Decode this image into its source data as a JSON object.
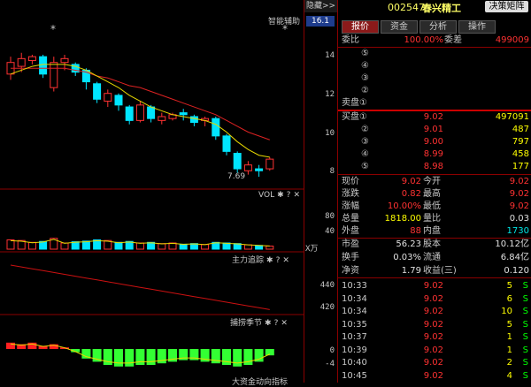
{
  "header": {
    "hide_label": "隐藏>>",
    "price_tag": "16.1",
    "stock_code": "002547",
    "stock_name": "春兴精工",
    "decision_button": "决策矩阵"
  },
  "tabs": [
    {
      "label": "报价",
      "active": true
    },
    {
      "label": "资金",
      "active": false
    },
    {
      "label": "分析",
      "active": false
    },
    {
      "label": "操作",
      "active": false
    }
  ],
  "chart_panels": {
    "main_title": "智能辅助",
    "star": "*",
    "low_marker": "7.69",
    "vol_title": "VOL",
    "vol_unit": "X万",
    "main_force_title": "主力追踪",
    "season_title": "捕捞季节",
    "bottom_cut": "大资金动向指标",
    "ctl_gear": "✱",
    "ctl_help": "?",
    "ctl_close": "✕"
  },
  "axis": {
    "price_ticks": [
      "14",
      "12",
      "10",
      "8"
    ],
    "vol_ticks": [
      "80",
      "40"
    ],
    "force_ticks": [
      "440",
      "420"
    ],
    "season_ticks": [
      "0",
      "-4"
    ]
  },
  "chart_data": {
    "type": "candlestick",
    "title": "智能辅助",
    "ylim": [
      7,
      16.1
    ],
    "candles": [
      {
        "o": 13.0,
        "c": 13.6,
        "h": 13.9,
        "l": 12.7
      },
      {
        "o": 13.4,
        "c": 13.8,
        "h": 14.1,
        "l": 13.1
      },
      {
        "o": 13.7,
        "c": 13.9,
        "h": 14.0,
        "l": 13.5
      },
      {
        "o": 13.9,
        "c": 13.0,
        "h": 14.0,
        "l": 12.8
      },
      {
        "o": 12.3,
        "c": 13.6,
        "h": 13.9,
        "l": 12.1
      },
      {
        "o": 13.6,
        "c": 13.8,
        "h": 14.0,
        "l": 13.2
      },
      {
        "o": 13.5,
        "c": 13.1,
        "h": 13.6,
        "l": 12.9
      },
      {
        "o": 13.2,
        "c": 12.6,
        "h": 13.3,
        "l": 12.2
      },
      {
        "o": 12.5,
        "c": 11.7,
        "h": 12.6,
        "l": 11.5
      },
      {
        "o": 11.6,
        "c": 12.0,
        "h": 12.2,
        "l": 11.3
      },
      {
        "o": 11.9,
        "c": 11.4,
        "h": 12.0,
        "l": 11.1
      },
      {
        "o": 11.3,
        "c": 10.6,
        "h": 11.4,
        "l": 10.4
      },
      {
        "o": 10.6,
        "c": 11.4,
        "h": 11.6,
        "l": 10.5
      },
      {
        "o": 11.3,
        "c": 10.7,
        "h": 11.4,
        "l": 10.5
      },
      {
        "o": 10.6,
        "c": 10.8,
        "h": 11.0,
        "l": 10.4
      },
      {
        "o": 10.7,
        "c": 10.9,
        "h": 11.0,
        "l": 10.6
      },
      {
        "o": 11.0,
        "c": 10.9,
        "h": 11.2,
        "l": 10.6
      },
      {
        "o": 10.8,
        "c": 10.5,
        "h": 10.9,
        "l": 10.3
      },
      {
        "o": 10.6,
        "c": 10.7,
        "h": 10.8,
        "l": 10.3
      },
      {
        "o": 10.7,
        "c": 9.8,
        "h": 10.8,
        "l": 9.6
      },
      {
        "o": 9.8,
        "c": 9.0,
        "h": 9.9,
        "l": 8.8
      },
      {
        "o": 8.9,
        "c": 8.1,
        "h": 9.0,
        "l": 7.9
      },
      {
        "o": 8.0,
        "c": 8.3,
        "h": 8.5,
        "l": 7.8
      },
      {
        "o": 8.1,
        "c": 8.0,
        "h": 8.3,
        "l": 7.69
      },
      {
        "o": 8.1,
        "c": 8.6,
        "h": 8.7,
        "l": 8.0
      }
    ],
    "ma_red": [
      13.3,
      13.3,
      13.3,
      13.3,
      13.3,
      13.3,
      13.2,
      13.1,
      12.9,
      12.8,
      12.6,
      12.4,
      12.3,
      12.1,
      11.9,
      11.7,
      11.5,
      11.3,
      11.1,
      10.9,
      10.6,
      10.3,
      10.0,
      9.8,
      9.6
    ],
    "ma_yellow": [
      13.0,
      13.2,
      13.4,
      13.5,
      13.5,
      13.5,
      13.4,
      13.2,
      12.9,
      12.6,
      12.3,
      11.9,
      11.6,
      11.3,
      11.1,
      10.9,
      10.8,
      10.7,
      10.6,
      10.4,
      10.0,
      9.5,
      9.1,
      8.8,
      8.7
    ],
    "volume": [
      30,
      28,
      22,
      25,
      35,
      20,
      24,
      26,
      30,
      28,
      22,
      25,
      20,
      22,
      18,
      20,
      16,
      18,
      15,
      22,
      20,
      18,
      14,
      12,
      10
    ],
    "season": [
      2,
      1.5,
      2,
      1,
      1.5,
      0.5,
      -1,
      -3,
      -4,
      -5,
      -5.5,
      -5.5,
      -5,
      -5,
      -4.5,
      -4,
      -3.5,
      -3.5,
      -4,
      -4.5,
      -5,
      -5.5,
      -5,
      -4,
      -2
    ]
  },
  "quote": {
    "wei_bi_label": "委比",
    "wei_bi_value": "100.00%",
    "wei_cha_label": "委差",
    "wei_cha_value": "499009",
    "sell_levels": [
      {
        "num": "⑤",
        "price": "",
        "vol": ""
      },
      {
        "num": "④",
        "price": "",
        "vol": ""
      },
      {
        "num": "③",
        "price": "",
        "vol": ""
      },
      {
        "num": "②",
        "price": "",
        "vol": ""
      },
      {
        "num": "卖盘①",
        "price": "",
        "vol": ""
      }
    ],
    "buy_levels": [
      {
        "num": "买盘①",
        "price": "9.02",
        "vol": "497091"
      },
      {
        "num": "②",
        "price": "9.01",
        "vol": "487"
      },
      {
        "num": "③",
        "price": "9.00",
        "vol": "797"
      },
      {
        "num": "④",
        "price": "8.99",
        "vol": "458"
      },
      {
        "num": "⑤",
        "price": "8.98",
        "vol": "177"
      }
    ],
    "stats": [
      {
        "l1": "现价",
        "v1": "9.02",
        "l2": "今开",
        "v2": "9.02"
      },
      {
        "l1": "涨跌",
        "v1": "0.82",
        "l2": "最高",
        "v2": "9.02"
      },
      {
        "l1": "涨幅",
        "v1": "10.00%",
        "l2": "最低",
        "v2": "9.02"
      },
      {
        "l1": "总量",
        "v1": "1818.00",
        "l2": "量比",
        "v2": "0.03"
      },
      {
        "l1": "外盘",
        "v1": "88",
        "l2": "内盘",
        "v2": "1730"
      }
    ],
    "stats2": [
      {
        "l1": "市盈",
        "v1": "56.23",
        "l2": "股本",
        "v2": "10.12亿"
      },
      {
        "l1": "换手",
        "v1": "0.03%",
        "l2": "流通",
        "v2": "6.84亿"
      },
      {
        "l1": "净资",
        "v1": "1.79",
        "l2": "收益(三)",
        "v2": "0.120"
      }
    ],
    "ticks": [
      {
        "time": "10:33",
        "price": "9.02",
        "vol": "5",
        "flag": "S"
      },
      {
        "time": "10:34",
        "price": "9.02",
        "vol": "6",
        "flag": "S"
      },
      {
        "time": "10:34",
        "price": "9.02",
        "vol": "10",
        "flag": "S"
      },
      {
        "time": "10:35",
        "price": "9.02",
        "vol": "5",
        "flag": "S"
      },
      {
        "time": "10:37",
        "price": "9.02",
        "vol": "1",
        "flag": "S"
      },
      {
        "time": "10:39",
        "price": "9.02",
        "vol": "1",
        "flag": "S"
      },
      {
        "time": "10:40",
        "price": "9.02",
        "vol": "2",
        "flag": "S"
      },
      {
        "time": "10:45",
        "price": "9.02",
        "vol": "4",
        "flag": "S"
      }
    ]
  }
}
